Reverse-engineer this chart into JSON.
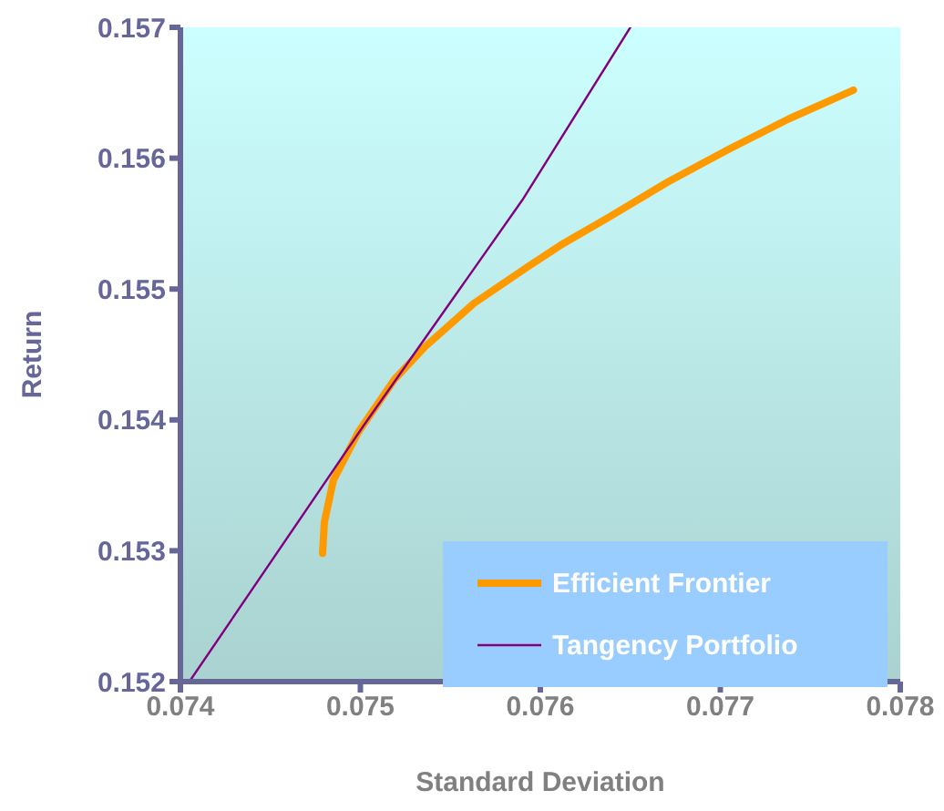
{
  "chart_data": {
    "type": "line",
    "xlabel": "Standard Deviation",
    "ylabel": "Return",
    "xlim": [
      0.074,
      0.078
    ],
    "xticks": [
      0.074,
      0.075,
      0.076,
      0.077,
      0.078
    ],
    "ylim": [
      0.152,
      0.157
    ],
    "yticks": [
      0.152,
      0.153,
      0.154,
      0.155,
      0.156,
      0.157
    ],
    "grid": false,
    "legend": "bottom right",
    "marker": "none",
    "line_style": "solid",
    "series": [
      {
        "name": "Efficient Frontier",
        "color": "#ff9900",
        "x": [
          0.07479,
          0.0748,
          0.07485,
          0.07499,
          0.07519,
          0.07536,
          0.07563,
          0.07593,
          0.07613,
          0.07637,
          0.07671,
          0.07705,
          0.07738,
          0.07774
        ],
        "values": [
          0.15298,
          0.15322,
          0.15354,
          0.15391,
          0.15431,
          0.15456,
          0.15489,
          0.15517,
          0.15535,
          0.15554,
          0.15582,
          0.15607,
          0.1563,
          0.15652
        ]
      },
      {
        "name": "Tangency Portfolio",
        "color": "#800080",
        "x": [
          0.07405,
          0.07502,
          0.0759,
          0.0765
        ],
        "values": [
          0.152,
          0.15396,
          0.15568,
          0.157
        ]
      }
    ]
  }
}
